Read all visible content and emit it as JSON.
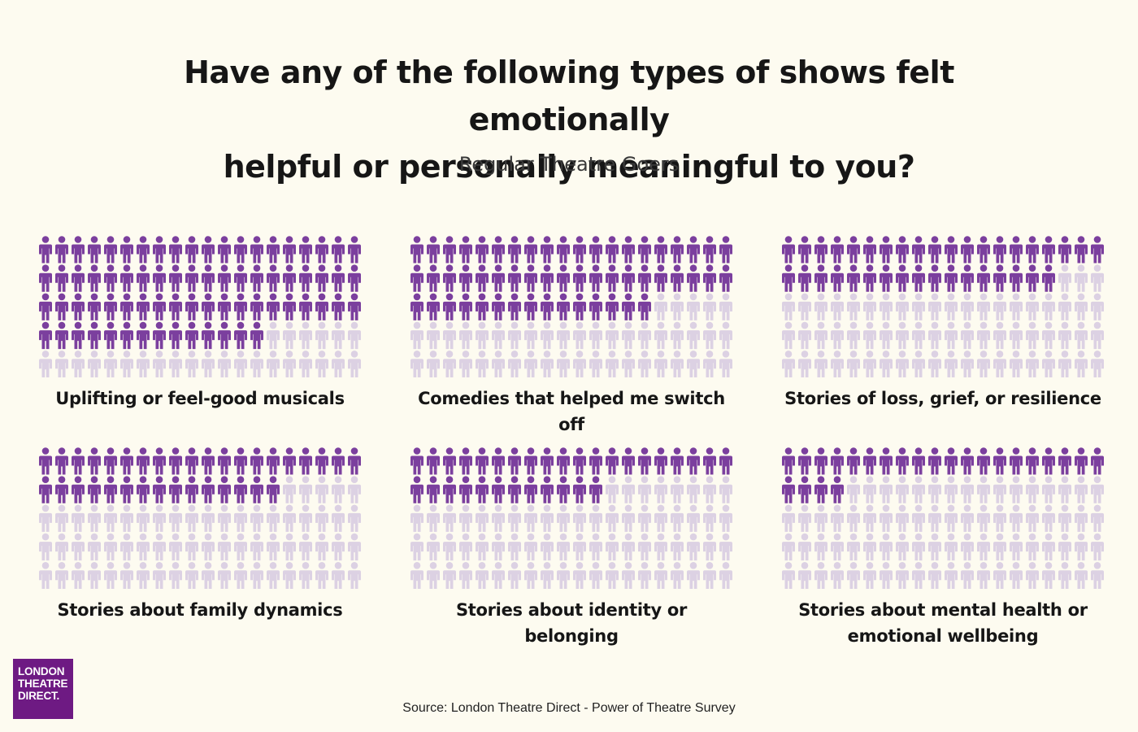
{
  "title_line1": "Have any of the following types of shows felt emotionally",
  "title_line2": "helpful or personally meaningful to you?",
  "subtitle": "Regular Theatre Goers",
  "source": "Source: London Theatre Direct - Power of Theatre Survey",
  "logo": {
    "line1": "LONDON",
    "line2": "THEATRE",
    "line3": "DIRECT."
  },
  "colors": {
    "filled": "#7b3f9e",
    "empty": "#dcd1e3",
    "background": "#fdfbf0"
  },
  "chart_data": {
    "type": "pictogram",
    "total_icons": 100,
    "grid": {
      "columns": 20,
      "rows": 5
    },
    "panels": [
      {
        "label": "Uplifting or feel-good musicals",
        "value": 74
      },
      {
        "label": "Comedies that helped me switch off",
        "value": 55
      },
      {
        "label": "Stories of loss, grief, or resilience",
        "value": 37
      },
      {
        "label": "Stories about family dynamics",
        "value": 35
      },
      {
        "label": "Stories about identity or belonging",
        "value": 32
      },
      {
        "label": "Stories about mental health or emotional wellbeing",
        "value": 24
      }
    ]
  }
}
